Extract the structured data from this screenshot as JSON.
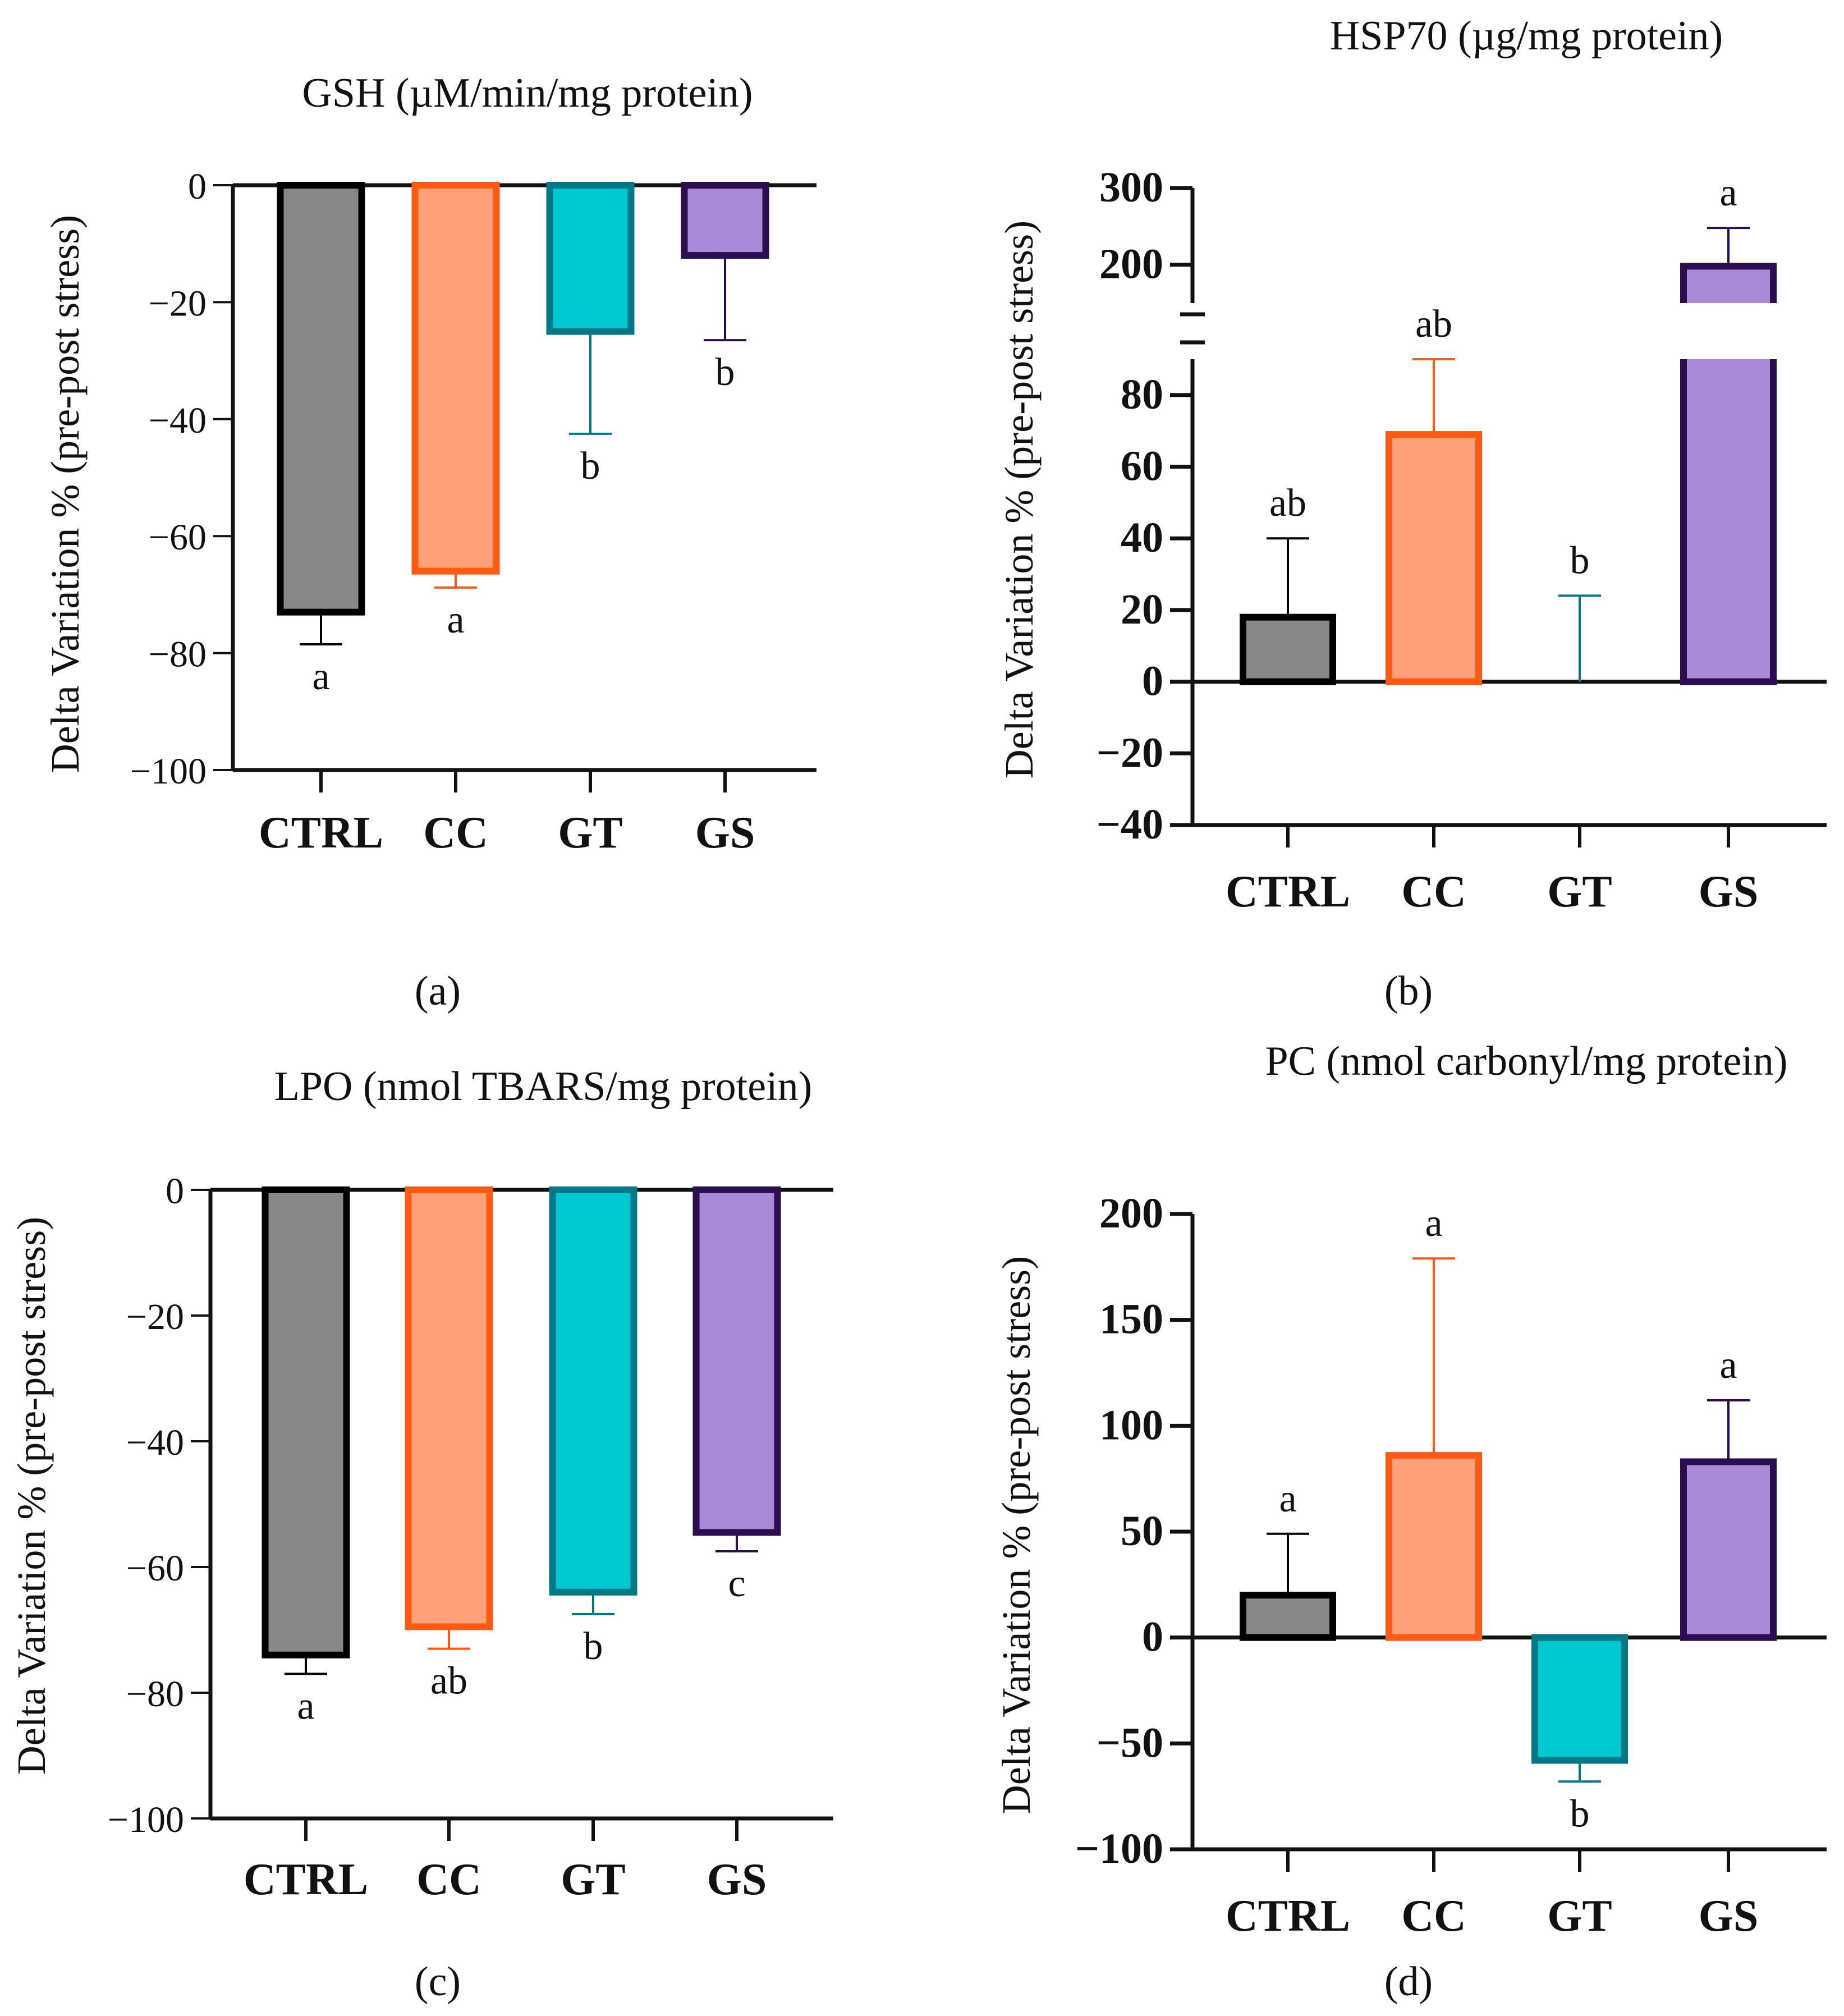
{
  "figure": {
    "panels": [
      "a",
      "b",
      "c",
      "d"
    ]
  },
  "chart_data": [
    {
      "panel": "a",
      "caption": "(a)",
      "type": "bar",
      "title": "GSH (µM/min/mg protein)",
      "ylabel": "Delta Variation % (pre-post stress)",
      "xlabel": "",
      "categories": [
        "CTRL",
        "CC",
        "GT",
        "GS"
      ],
      "values": [
        -73,
        -66,
        -25,
        -12
      ],
      "errors": [
        5.5,
        2.8,
        17.5,
        14.5
      ],
      "letters": [
        "a",
        "a",
        "b",
        "b"
      ],
      "ylim": [
        -100,
        0
      ],
      "yticks": [
        0,
        -20,
        -40,
        -60,
        -80,
        -100
      ],
      "ytick_labels": [
        "0",
        "−20",
        "−40",
        "−60",
        "−80",
        "−100"
      ],
      "bar_fill": [
        "#888888",
        "#FFA078",
        "#00C8D0",
        "#A98AD8"
      ],
      "bar_edge": [
        "#000000",
        "#FF5A14",
        "#007888",
        "#2A0E50"
      ]
    },
    {
      "panel": "b",
      "caption": "(b)",
      "type": "bar",
      "title": "HSP70 (µg/mg protein)",
      "ylabel": "Delta Variation % (pre-post stress)",
      "xlabel": "",
      "categories": [
        "CTRL",
        "CC",
        "GT",
        "GS"
      ],
      "values": [
        18,
        69,
        0,
        198
      ],
      "errors": [
        22,
        21,
        24,
        50
      ],
      "letters": [
        "ab",
        "ab",
        "b",
        "a"
      ],
      "ylim": [
        -40,
        300
      ],
      "axis_break": [
        90,
        150
      ],
      "yticks": [
        300,
        200,
        80,
        60,
        40,
        20,
        0,
        -20,
        -40
      ],
      "ytick_labels": [
        "300",
        "200",
        "80",
        "60",
        "40",
        "20",
        "0",
        "−20",
        "−40"
      ],
      "bar_fill": [
        "#888888",
        "#FFA078",
        "#00C8D0",
        "#A98AD8"
      ],
      "bar_edge": [
        "#000000",
        "#FF5A14",
        "#007888",
        "#2A0E50"
      ]
    },
    {
      "panel": "c",
      "caption": "(c)",
      "type": "bar",
      "title": "LPO (nmol TBARS/mg protein)",
      "ylabel": "Delta Variation % (pre-post stress)",
      "xlabel": "",
      "categories": [
        "CTRL",
        "CC",
        "GT",
        "GS"
      ],
      "values": [
        -74,
        -69.5,
        -64,
        -54.5
      ],
      "errors": [
        3,
        3.5,
        3.5,
        3
      ],
      "letters": [
        "a",
        "ab",
        "b",
        "c"
      ],
      "ylim": [
        -100,
        0
      ],
      "yticks": [
        0,
        -20,
        -40,
        -60,
        -80,
        -100
      ],
      "ytick_labels": [
        "0",
        "−20",
        "−40",
        "−60",
        "−80",
        "−100"
      ],
      "bar_fill": [
        "#888888",
        "#FFA078",
        "#00C8D0",
        "#A98AD8"
      ],
      "bar_edge": [
        "#000000",
        "#FF5A14",
        "#007888",
        "#2A0E50"
      ]
    },
    {
      "panel": "d",
      "caption": "(d)",
      "type": "bar",
      "title": "PC (nmol carbonyl/mg protein)",
      "ylabel": "Delta Variation % (pre-post stress)",
      "xlabel": "",
      "categories": [
        "CTRL",
        "CC",
        "GT",
        "GS"
      ],
      "values": [
        20,
        86,
        -58,
        83
      ],
      "errors": [
        29,
        93,
        10,
        29
      ],
      "letters": [
        "a",
        "a",
        "b",
        "a"
      ],
      "ylim": [
        -100,
        200
      ],
      "yticks": [
        200,
        150,
        100,
        50,
        0,
        -50,
        -100
      ],
      "ytick_labels": [
        "200",
        "150",
        "100",
        "50",
        "0",
        "−50",
        "−100"
      ],
      "bar_fill": [
        "#888888",
        "#FFA078",
        "#00C8D0",
        "#A98AD8"
      ],
      "bar_edge": [
        "#000000",
        "#FF5A14",
        "#007888",
        "#2A0E50"
      ]
    }
  ]
}
